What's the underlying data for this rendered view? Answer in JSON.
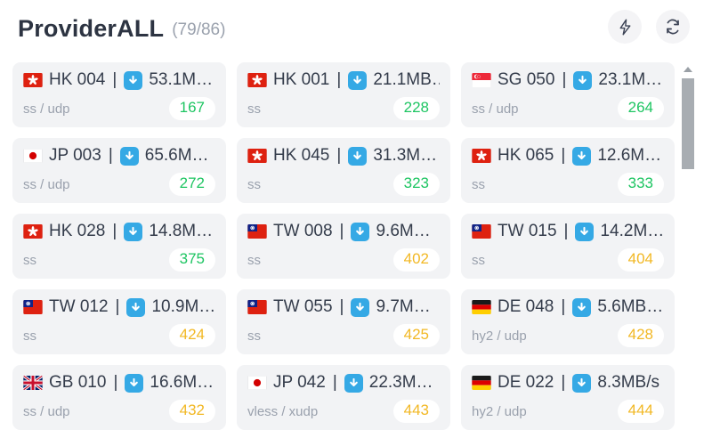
{
  "header": {
    "title": "ProviderALL",
    "count": "(79/86)",
    "actions": [
      {
        "name": "run-speed-test",
        "icon": "lightning-icon"
      },
      {
        "name": "refresh-provider",
        "icon": "refresh-icon"
      }
    ]
  },
  "card_meta": {
    "separator": "|",
    "download_icon": "download-arrow-icon"
  },
  "colors": {
    "title_text": "#2d3442",
    "muted_text": "#9aa1ad",
    "card_background": "#f2f3f5",
    "download_chip": "#35a9e5",
    "latency_good": "#1ec562",
    "latency_medium": "#f2b824",
    "badge_background": "#ffffff"
  },
  "icons": {
    "lightning-icon": "outline lightning bolt",
    "refresh-icon": "circular refresh arrows",
    "download-arrow-icon": "white down arrow on blue rounded square",
    "scrollbar-up-arrow-icon": "small gray up triangle"
  },
  "cards": [
    {
      "flag": "hk",
      "country": "Hong Kong",
      "name": "HK 004",
      "speed": "53.1M…",
      "protocol": "ss / udp",
      "latency": "167",
      "status": "good"
    },
    {
      "flag": "hk",
      "country": "Hong Kong",
      "name": "HK 001",
      "speed": "21.1MB…",
      "protocol": "ss",
      "latency": "228",
      "status": "good"
    },
    {
      "flag": "sg",
      "country": "Singapore",
      "name": "SG 050",
      "speed": "23.1M…",
      "protocol": "ss / udp",
      "latency": "264",
      "status": "good"
    },
    {
      "flag": "jp",
      "country": "Japan",
      "name": "JP 003",
      "speed": "65.6M…",
      "protocol": "ss / udp",
      "latency": "272",
      "status": "good"
    },
    {
      "flag": "hk",
      "country": "Hong Kong",
      "name": "HK 045",
      "speed": "31.3M…",
      "protocol": "ss",
      "latency": "323",
      "status": "good"
    },
    {
      "flag": "hk",
      "country": "Hong Kong",
      "name": "HK 065",
      "speed": "12.6M…",
      "protocol": "ss",
      "latency": "333",
      "status": "good"
    },
    {
      "flag": "hk",
      "country": "Hong Kong",
      "name": "HK 028",
      "speed": "14.8M…",
      "protocol": "ss",
      "latency": "375",
      "status": "good"
    },
    {
      "flag": "tw",
      "country": "Taiwan",
      "name": "TW 008",
      "speed": "9.6M…",
      "protocol": "ss",
      "latency": "402",
      "status": "medium"
    },
    {
      "flag": "tw",
      "country": "Taiwan",
      "name": "TW 015",
      "speed": "14.2M…",
      "protocol": "ss",
      "latency": "404",
      "status": "medium"
    },
    {
      "flag": "tw",
      "country": "Taiwan",
      "name": "TW 012",
      "speed": "10.9M…",
      "protocol": "ss",
      "latency": "424",
      "status": "medium"
    },
    {
      "flag": "tw",
      "country": "Taiwan",
      "name": "TW 055",
      "speed": "9.7M…",
      "protocol": "ss",
      "latency": "425",
      "status": "medium"
    },
    {
      "flag": "de",
      "country": "Germany",
      "name": "DE 048",
      "speed": "5.6MB…",
      "protocol": "hy2 / udp",
      "latency": "428",
      "status": "medium"
    },
    {
      "flag": "gb",
      "country": "United Kingdom",
      "name": "GB 010",
      "speed": "16.6M…",
      "protocol": "ss / udp",
      "latency": "432",
      "status": "medium"
    },
    {
      "flag": "jp",
      "country": "Japan",
      "name": "JP 042",
      "speed": "22.3M…",
      "protocol": "vless / xudp",
      "latency": "443",
      "status": "medium"
    },
    {
      "flag": "de",
      "country": "Germany",
      "name": "DE 022",
      "speed": "8.3MB/s",
      "protocol": "hy2 / udp",
      "latency": "444",
      "status": "medium"
    }
  ]
}
